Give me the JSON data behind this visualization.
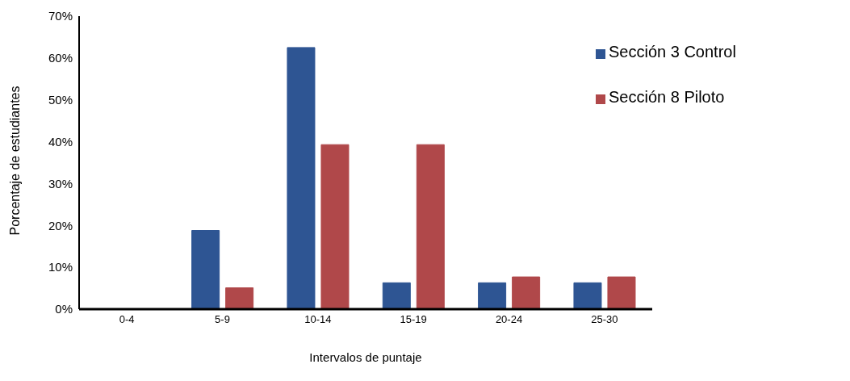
{
  "chart_data": {
    "type": "bar",
    "xlabel": "Intervalos de puntaje",
    "ylabel": "Porcentaje de estudiantes",
    "categories": [
      "0-4",
      "5-9",
      "10-14",
      "15-19",
      "20-24",
      "25-30"
    ],
    "series": [
      {
        "name": "Sección 3 Control",
        "color": "#2e5593",
        "values": [
          0,
          18.8,
          62.5,
          6.3,
          6.3,
          6.3
        ]
      },
      {
        "name": "Sección 8 Piloto",
        "color": "#b0484a",
        "values": [
          0,
          5.1,
          39.3,
          39.3,
          7.7,
          7.7
        ]
      }
    ],
    "ylim": [
      0,
      70
    ],
    "yticks": [
      {
        "value": 0,
        "label": "0%"
      },
      {
        "value": 10,
        "label": "10%"
      },
      {
        "value": 20,
        "label": "20%"
      },
      {
        "value": 30,
        "label": "30%"
      },
      {
        "value": 40,
        "label": "40%"
      },
      {
        "value": 50,
        "label": "50%"
      },
      {
        "value": 60,
        "label": "60%"
      },
      {
        "value": 70,
        "label": "70%"
      }
    ],
    "grid": false,
    "legend": "top right"
  }
}
